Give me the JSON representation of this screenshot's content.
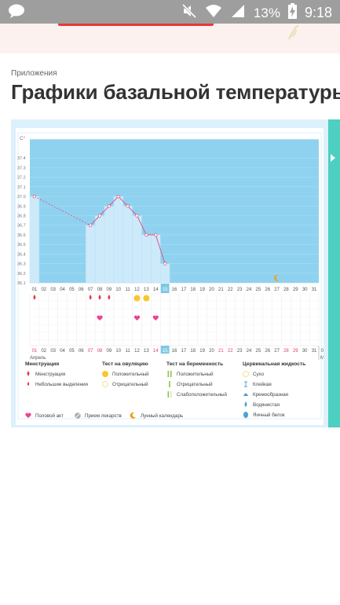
{
  "status_bar": {
    "battery": "13%",
    "time": "9:18",
    "icons": [
      "chat-bubble-icon",
      "mute-icon",
      "wifi-icon",
      "signal-icon",
      "battery-charging-icon"
    ]
  },
  "breadcrumb": "Приложения",
  "page_title": "Графики базальной температуры",
  "colors": {
    "chart_bg": "#8fd2ef",
    "bar_fill": "#cdeafa",
    "line": "#e04a7f",
    "teal": "#4dcfc1",
    "today": "#7dc8e6"
  },
  "chart_data": {
    "type": "line",
    "unit": "C°",
    "ylim": [
      36.1,
      37.5
    ],
    "y_ticks": [
      "37.4",
      "37.3",
      "37.2",
      "37.1",
      "37.0",
      "36.9",
      "36.8",
      "36.7",
      "36.6",
      "36.5",
      "36.4",
      "36.3",
      "36.2",
      "36.1"
    ],
    "days": [
      "01",
      "02",
      "03",
      "04",
      "05",
      "06",
      "07",
      "08",
      "09",
      "10",
      "11",
      "12",
      "13",
      "14",
      "15",
      "16",
      "17",
      "18",
      "19",
      "20",
      "21",
      "22",
      "23",
      "24",
      "25",
      "26",
      "27",
      "28",
      "29",
      "30",
      "31"
    ],
    "points": [
      {
        "day": 1,
        "temp": 37.0
      },
      {
        "day": 7,
        "temp": 36.7
      },
      {
        "day": 8,
        "temp": 36.8
      },
      {
        "day": 9,
        "temp": 36.9
      },
      {
        "day": 10,
        "temp": 37.0
      },
      {
        "day": 11,
        "temp": 36.9
      },
      {
        "day": 12,
        "temp": 36.8
      },
      {
        "day": 13,
        "temp": 36.6
      },
      {
        "day": 14,
        "temp": 36.6
      },
      {
        "day": 15,
        "temp": 36.3
      }
    ],
    "dashed_segment_days": [
      1,
      7
    ],
    "today": 15,
    "moon_day": 27,
    "menstruation_days": [
      1,
      7,
      8,
      9
    ],
    "ovulation_positive_days": [
      12,
      13
    ],
    "intercourse_days": [
      8,
      12,
      14
    ],
    "bottom_red_days": [
      1,
      7,
      8,
      14,
      21,
      22,
      28,
      29
    ],
    "month_label": "Апрель",
    "next_month": {
      "day": "01",
      "label": "Ма"
    }
  },
  "legend": {
    "groups": [
      {
        "title": "Менструация",
        "items": [
          {
            "icon": "drop-icon",
            "label": "Менструация"
          },
          {
            "icon": "small-drop-icon",
            "label": "Небольшие выделения"
          }
        ]
      },
      {
        "title": "Тест на овуляцию",
        "items": [
          {
            "icon": "circle-filled-icon",
            "label": "Положительный"
          },
          {
            "icon": "circle-outline-icon",
            "label": "Отрицательный"
          }
        ]
      },
      {
        "title": "Тест на беременность",
        "items": [
          {
            "icon": "double-bar-icon",
            "label": "Положительный"
          },
          {
            "icon": "single-bar-icon",
            "label": "Отрицательный"
          },
          {
            "icon": "faint-bar-icon",
            "label": "Слабоположительный"
          }
        ]
      },
      {
        "title": "Цервикальная жидкость",
        "items": [
          {
            "icon": "circle-outline-icon",
            "label": "Сухо"
          },
          {
            "icon": "sticky-icon",
            "label": "Клейкая"
          },
          {
            "icon": "creamy-icon",
            "label": "Кремообразная"
          },
          {
            "icon": "watery-icon",
            "label": "Водянистая"
          },
          {
            "icon": "egg-white-icon",
            "label": "Яичный белок"
          }
        ]
      }
    ],
    "bottom": [
      {
        "icon": "heart-icon",
        "label": "Половой акт"
      },
      {
        "icon": "pill-icon",
        "label": "Прием лекарств"
      },
      {
        "icon": "moon-icon",
        "label": "Лунный календарь"
      }
    ]
  }
}
